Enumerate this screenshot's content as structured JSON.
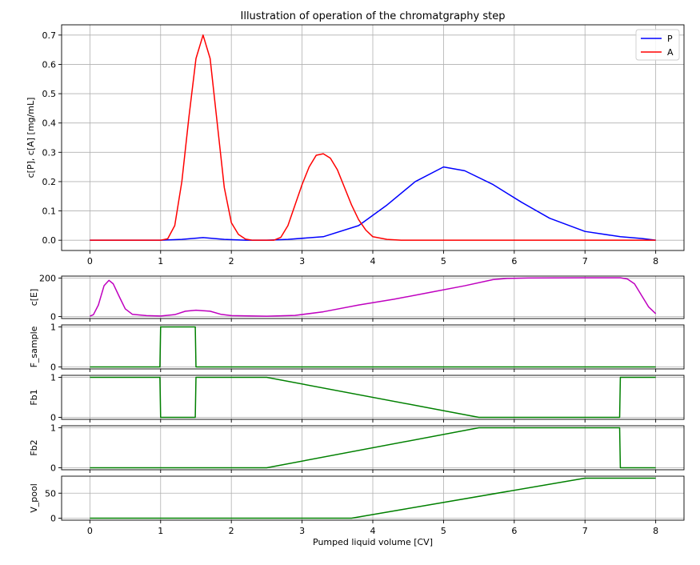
{
  "figure": {
    "title": "Illustration of operation of the chromatgraphy step",
    "xlabel": "Pumped liquid volume [CV]"
  },
  "chart_data": [
    {
      "id": "conc",
      "type": "line",
      "title": "Illustration of operation of the chromatgraphy step",
      "ylabel": "c[P], c[A] [mg/mL]",
      "xlabel": "",
      "xlim": [
        -0.4,
        8.4
      ],
      "ylim": [
        -0.035,
        0.735
      ],
      "xticks": [
        0,
        1,
        2,
        3,
        4,
        5,
        6,
        7,
        8
      ],
      "yticks": [
        0.0,
        0.1,
        0.2,
        0.3,
        0.4,
        0.5,
        0.6,
        0.7
      ],
      "ytick_labels": [
        "0.0",
        "0.1",
        "0.2",
        "0.3",
        "0.4",
        "0.5",
        "0.6",
        "0.7"
      ],
      "grid": true,
      "legend": "top-right",
      "series": [
        {
          "name": "P",
          "color": "#0000ff",
          "points": [
            [
              0,
              0
            ],
            [
              1,
              0
            ],
            [
              1.3,
              0.003
            ],
            [
              1.6,
              0.009
            ],
            [
              1.9,
              0.003
            ],
            [
              2.2,
              0
            ],
            [
              2.5,
              0
            ],
            [
              2.8,
              0.003
            ],
            [
              3.3,
              0.012
            ],
            [
              3.8,
              0.05
            ],
            [
              4.2,
              0.12
            ],
            [
              4.6,
              0.2
            ],
            [
              5.0,
              0.25
            ],
            [
              5.3,
              0.237
            ],
            [
              5.7,
              0.19
            ],
            [
              6.1,
              0.13
            ],
            [
              6.5,
              0.075
            ],
            [
              7.0,
              0.03
            ],
            [
              7.5,
              0.012
            ],
            [
              7.8,
              0.006
            ],
            [
              8,
              0
            ]
          ]
        },
        {
          "name": "A",
          "color": "#ff0000",
          "points": [
            [
              0,
              0
            ],
            [
              1.0,
              0
            ],
            [
              1.1,
              0.005
            ],
            [
              1.2,
              0.05
            ],
            [
              1.3,
              0.2
            ],
            [
              1.4,
              0.42
            ],
            [
              1.5,
              0.62
            ],
            [
              1.6,
              0.7
            ],
            [
              1.7,
              0.62
            ],
            [
              1.8,
              0.4
            ],
            [
              1.9,
              0.18
            ],
            [
              2.0,
              0.06
            ],
            [
              2.1,
              0.02
            ],
            [
              2.2,
              0.004
            ],
            [
              2.3,
              0
            ],
            [
              2.6,
              0
            ],
            [
              2.7,
              0.01
            ],
            [
              2.8,
              0.05
            ],
            [
              2.9,
              0.12
            ],
            [
              3.0,
              0.19
            ],
            [
              3.1,
              0.25
            ],
            [
              3.2,
              0.29
            ],
            [
              3.3,
              0.295
            ],
            [
              3.4,
              0.28
            ],
            [
              3.5,
              0.24
            ],
            [
              3.6,
              0.18
            ],
            [
              3.7,
              0.12
            ],
            [
              3.8,
              0.07
            ],
            [
              3.9,
              0.035
            ],
            [
              4.0,
              0.012
            ],
            [
              4.2,
              0.003
            ],
            [
              4.4,
              0
            ],
            [
              8,
              0
            ]
          ]
        }
      ]
    },
    {
      "id": "ce",
      "type": "line",
      "ylabel": "c[E]",
      "xlim": [
        -0.4,
        8.4
      ],
      "ylim": [
        -10,
        210
      ],
      "yticks": [
        0,
        200
      ],
      "ytick_labels": [
        "0",
        "200"
      ],
      "grid": true,
      "series": [
        {
          "name": "",
          "color": "#bf00bf",
          "points": [
            [
              0,
              2
            ],
            [
              0.05,
              10
            ],
            [
              0.12,
              60
            ],
            [
              0.2,
              160
            ],
            [
              0.27,
              188
            ],
            [
              0.33,
              170
            ],
            [
              0.42,
              100
            ],
            [
              0.5,
              40
            ],
            [
              0.6,
              12
            ],
            [
              0.8,
              5
            ],
            [
              1.0,
              3
            ],
            [
              1.2,
              10
            ],
            [
              1.35,
              28
            ],
            [
              1.5,
              33
            ],
            [
              1.7,
              28
            ],
            [
              1.85,
              12
            ],
            [
              2.0,
              5
            ],
            [
              2.5,
              2
            ],
            [
              2.9,
              6
            ],
            [
              3.3,
              25
            ],
            [
              3.8,
              60
            ],
            [
              4.3,
              90
            ],
            [
              4.8,
              125
            ],
            [
              5.3,
              160
            ],
            [
              5.7,
              192
            ],
            [
              5.9,
              198
            ],
            [
              6.2,
              200
            ],
            [
              7.0,
              201
            ],
            [
              7.5,
              201
            ],
            [
              7.6,
              195
            ],
            [
              7.7,
              170
            ],
            [
              7.8,
              110
            ],
            [
              7.9,
              50
            ],
            [
              8.0,
              15
            ]
          ]
        }
      ]
    },
    {
      "id": "f_sample",
      "type": "line",
      "ylabel": "F_sample",
      "xlim": [
        -0.4,
        8.4
      ],
      "ylim": [
        -0.05,
        1.05
      ],
      "yticks": [
        0,
        1
      ],
      "ytick_labels": [
        "0",
        "1"
      ],
      "grid": true,
      "series": [
        {
          "name": "",
          "color": "#008000",
          "points": [
            [
              0,
              0
            ],
            [
              0.99,
              0
            ],
            [
              1.0,
              1
            ],
            [
              1.49,
              1
            ],
            [
              1.5,
              0
            ],
            [
              8,
              0
            ]
          ]
        }
      ]
    },
    {
      "id": "fb1",
      "type": "line",
      "ylabel": "Fb1",
      "xlim": [
        -0.4,
        8.4
      ],
      "ylim": [
        -0.05,
        1.05
      ],
      "yticks": [
        0,
        1
      ],
      "ytick_labels": [
        "0",
        "1"
      ],
      "grid": true,
      "series": [
        {
          "name": "",
          "color": "#008000",
          "points": [
            [
              0,
              1
            ],
            [
              0.99,
              1
            ],
            [
              1.0,
              0
            ],
            [
              1.49,
              0
            ],
            [
              1.5,
              1
            ],
            [
              2.5,
              1
            ],
            [
              5.5,
              0
            ],
            [
              7.49,
              0
            ],
            [
              7.5,
              1
            ],
            [
              8,
              1
            ]
          ]
        }
      ]
    },
    {
      "id": "fb2",
      "type": "line",
      "ylabel": "Fb2",
      "xlim": [
        -0.4,
        8.4
      ],
      "ylim": [
        -0.05,
        1.05
      ],
      "yticks": [
        0,
        1
      ],
      "ytick_labels": [
        "0",
        "1"
      ],
      "grid": true,
      "series": [
        {
          "name": "",
          "color": "#008000",
          "points": [
            [
              0,
              0
            ],
            [
              2.5,
              0
            ],
            [
              5.5,
              1
            ],
            [
              7.49,
              1
            ],
            [
              7.5,
              0
            ],
            [
              8,
              0
            ]
          ]
        }
      ]
    },
    {
      "id": "v_pool",
      "type": "line",
      "ylabel": "V_pool",
      "xlabel": "Pumped liquid volume [CV]",
      "xlim": [
        -0.4,
        8.4
      ],
      "ylim": [
        -4,
        84
      ],
      "xticks": [
        0,
        1,
        2,
        3,
        4,
        5,
        6,
        7,
        8
      ],
      "yticks": [
        0,
        50
      ],
      "ytick_labels": [
        "0",
        "50"
      ],
      "grid": true,
      "series": [
        {
          "name": "",
          "color": "#008000",
          "points": [
            [
              0,
              0
            ],
            [
              3.7,
              0
            ],
            [
              7.0,
              80
            ],
            [
              8,
              80
            ]
          ]
        }
      ]
    }
  ]
}
